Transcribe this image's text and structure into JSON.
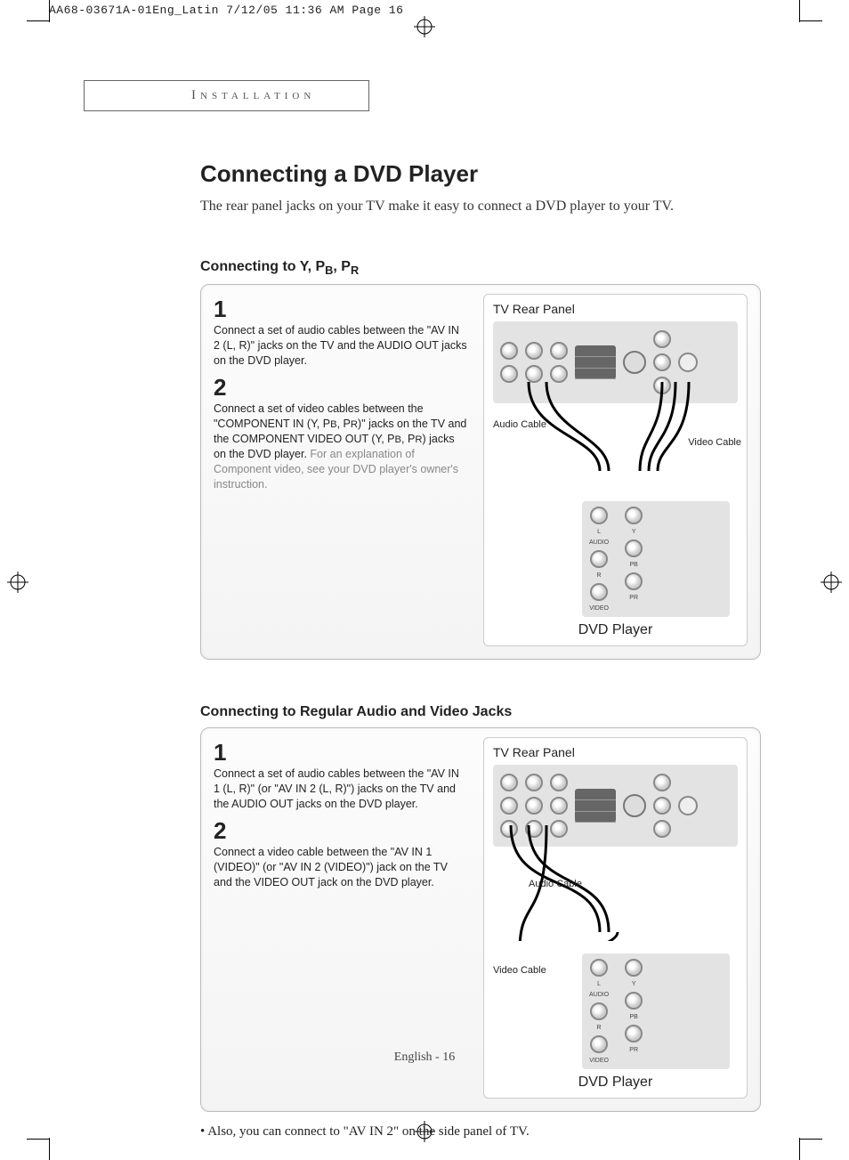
{
  "meta": {
    "print_header": "AA68-03671A-01Eng_Latin  7/12/05  11:36 AM  Page 16"
  },
  "section_label": "Installation",
  "title": "Connecting a DVD Player",
  "intro": "The rear panel jacks on your TV make it easy to connect a DVD player to your TV.",
  "section_a": {
    "heading_html": "Connecting to Y, P<span class='sub'>B</span>, P<span class='sub'>R</span>",
    "steps": [
      {
        "num": "1",
        "body_html": "Connect a set of audio cables between the \"AV IN 2 (L, R)\" jacks on the TV and the AUDIO OUT jacks on the DVD player."
      },
      {
        "num": "2",
        "body_html": "Connect a set of video cables between the \"COMPONENT IN (Y, P<span class='sc'>B</span>, P<span class='sc'>R</span>)\" jacks on the TV and the COMPONENT VIDEO OUT (Y, P<span class='sc'>B</span>, P<span class='sc'>R</span>) jacks on the DVD player. <span class='note'>For an explanation of Component video, see your DVD player's owner's instruction.</span>"
      }
    ],
    "diagram": {
      "tv_label": "TV Rear Panel",
      "audio_cable": "Audio Cable",
      "video_cable": "Video Cable",
      "dvd_label": "DVD Player",
      "dvd_jacks_left": [
        "L",
        "AUDIO",
        "R",
        "VIDEO"
      ],
      "dvd_jacks_right": [
        "Y",
        "PB",
        "PR"
      ]
    }
  },
  "section_b": {
    "heading": "Connecting to Regular Audio and Video Jacks",
    "steps": [
      {
        "num": "1",
        "body_html": "Connect a set of audio cables between the \"AV IN 1 (L, R)\" (or \"AV IN 2 (L, R)\") jacks on the TV and the AUDIO OUT jacks on the DVD player."
      },
      {
        "num": "2",
        "body_html": "Connect a video cable between the \"AV IN 1 (VIDEO)\" (or \"AV IN 2 (VIDEO)\") jack on the TV and the VIDEO OUT jack on the DVD player."
      }
    ],
    "diagram": {
      "tv_label": "TV Rear Panel",
      "audio_cable": "Audio Cable",
      "video_cable": "Video Cable",
      "dvd_label": "DVD Player",
      "dvd_jacks_left": [
        "L",
        "AUDIO",
        "R",
        "VIDEO"
      ],
      "dvd_jacks_right": [
        "Y",
        "PB",
        "PR"
      ]
    }
  },
  "note": "Also, you can connect to \"AV IN 2\" on the side panel of TV.",
  "footer": "English - 16",
  "colors": {
    "text": "#222222",
    "muted": "#888888",
    "border": "#bbbbbb",
    "panel_bg_top": "#fcfcfc",
    "panel_bg_bot": "#f4f4f4",
    "device_bg": "#e3e3e3"
  }
}
